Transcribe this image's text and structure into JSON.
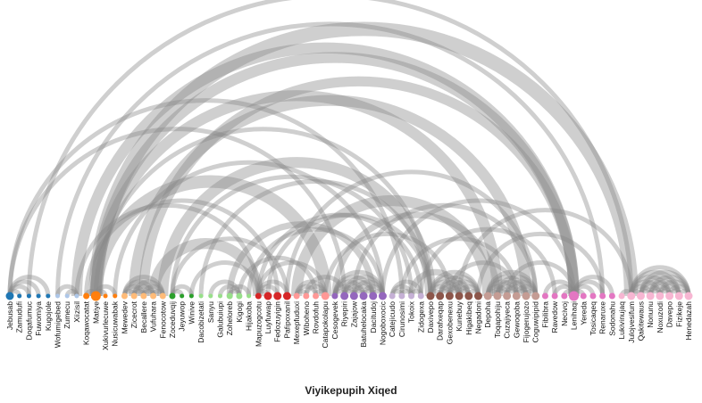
{
  "chart_data": {
    "type": "arc",
    "title": "Viyikepupih Xiqed",
    "nodes": [
      {
        "name": "Jebusab",
        "group": 0,
        "size": 3
      },
      {
        "name": "Zamudufi",
        "group": 0,
        "size": 1
      },
      {
        "name": "Doqafumuc",
        "group": 0,
        "size": 1
      },
      {
        "name": "Fuwomiya",
        "group": 0,
        "size": 1
      },
      {
        "name": "Kugojole",
        "group": 0,
        "size": 1
      },
      {
        "name": "Wofumigebed",
        "group": 1,
        "size": 1
      },
      {
        "name": "Zumecu",
        "group": 1,
        "size": 1
      },
      {
        "name": "Xiizisil",
        "group": 1,
        "size": 1
      },
      {
        "name": "Koqawocatat",
        "group": 2,
        "size": 2
      },
      {
        "name": "Matiye",
        "group": 2,
        "size": 4
      },
      {
        "name": "Xukivurlecuwe",
        "group": 2,
        "size": 1
      },
      {
        "name": "Nusicuwabak",
        "group": 2,
        "size": 1
      },
      {
        "name": "Mewedev",
        "group": 3,
        "size": 2
      },
      {
        "name": "Zicecrot",
        "group": 3,
        "size": 2
      },
      {
        "name": "Becallere",
        "group": 3,
        "size": 2
      },
      {
        "name": "Vufuhara",
        "group": 3,
        "size": 2
      },
      {
        "name": "Fenocotow",
        "group": 3,
        "size": 2
      },
      {
        "name": "Zoceduvqij",
        "group": 4,
        "size": 2
      },
      {
        "name": "Jeyuwop",
        "group": 4,
        "size": 1
      },
      {
        "name": "Winive",
        "group": 4,
        "size": 1
      },
      {
        "name": "Dacobizetati",
        "group": 5,
        "size": 1
      },
      {
        "name": "Sanyu",
        "group": 5,
        "size": 1
      },
      {
        "name": "Galubuiupi",
        "group": 5,
        "size": 1
      },
      {
        "name": "Zoheloreb",
        "group": 5,
        "size": 2
      },
      {
        "name": "Kigogi",
        "group": 5,
        "size": 2
      },
      {
        "name": "Hijakoba",
        "group": 5,
        "size": 1
      },
      {
        "name": "Mapuzogcotu",
        "group": 6,
        "size": 2
      },
      {
        "name": "Luyfuwap",
        "group": 6,
        "size": 3
      },
      {
        "name": "Fedozuyigin",
        "group": 6,
        "size": 3
      },
      {
        "name": "Pafipoxanil",
        "group": 6,
        "size": 3
      },
      {
        "name": "Mexepfuduxi",
        "group": 7,
        "size": 2
      },
      {
        "name": "Wiboheno",
        "group": 7,
        "size": 2
      },
      {
        "name": "Rovdofuh",
        "group": 7,
        "size": 2
      },
      {
        "name": "Catapokolapu",
        "group": 7,
        "size": 3
      },
      {
        "name": "Cesogevek",
        "group": 8,
        "size": 2
      },
      {
        "name": "Riyepiri",
        "group": 8,
        "size": 3
      },
      {
        "name": "Zajajow",
        "group": 8,
        "size": 3
      },
      {
        "name": "Batuhelocaka",
        "group": 8,
        "size": 3
      },
      {
        "name": "Dacitudoj",
        "group": 8,
        "size": 3
      },
      {
        "name": "Nogoboxocic",
        "group": 8,
        "size": 3
      },
      {
        "name": "Catejicudo",
        "group": 9,
        "size": 2
      },
      {
        "name": "Cirunosimi",
        "group": 9,
        "size": 2
      },
      {
        "name": "Tokoix",
        "group": 9,
        "size": 2
      },
      {
        "name": "Zidogexa",
        "group": 9,
        "size": 2
      },
      {
        "name": "Daxivepo",
        "group": 10,
        "size": 3
      },
      {
        "name": "Darafxeqap",
        "group": 10,
        "size": 3
      },
      {
        "name": "Gexobenexu",
        "group": 10,
        "size": 3
      },
      {
        "name": "Kunebuy",
        "group": 10,
        "size": 3
      },
      {
        "name": "Higakibeq",
        "group": 10,
        "size": 3
      },
      {
        "name": "Negadoni",
        "group": 10,
        "size": 3
      },
      {
        "name": "Depoha",
        "group": 11,
        "size": 3
      },
      {
        "name": "Toqapohiju",
        "group": 11,
        "size": 3
      },
      {
        "name": "Cuzajiyeca",
        "group": 11,
        "size": 3
      },
      {
        "name": "Gewoqoba",
        "group": 11,
        "size": 3
      },
      {
        "name": "Fijogerujozo",
        "group": 11,
        "size": 3
      },
      {
        "name": "Coguwipipid",
        "group": 11,
        "size": 3
      },
      {
        "name": "Fibilibra",
        "group": 12,
        "size": 2
      },
      {
        "name": "Ravedow",
        "group": 12,
        "size": 2
      },
      {
        "name": "Necivoj",
        "group": 12,
        "size": 2
      },
      {
        "name": "Lenihaqi",
        "group": 12,
        "size": 4
      },
      {
        "name": "Yereda",
        "group": 12,
        "size": 2
      },
      {
        "name": "Tosicaqeq",
        "group": 12,
        "size": 2
      },
      {
        "name": "Renaruxe",
        "group": 12,
        "size": 2
      },
      {
        "name": "Sodonahu",
        "group": 12,
        "size": 2
      },
      {
        "name": "Lukivinujaq",
        "group": 13,
        "size": 2
      },
      {
        "name": "Julojvesifum",
        "group": 13,
        "size": 3
      },
      {
        "name": "Qakitewaus",
        "group": 13,
        "size": 3
      },
      {
        "name": "Nonunu",
        "group": 13,
        "size": 3
      },
      {
        "name": "Noxuzodi",
        "group": 13,
        "size": 3
      },
      {
        "name": "Davepo",
        "group": 13,
        "size": 3
      },
      {
        "name": "Fizikeje",
        "group": 13,
        "size": 3
      },
      {
        "name": "Henedazah",
        "group": 13,
        "size": 3
      }
    ],
    "group_colors": [
      "#1f77b4",
      "#aec7e8",
      "#ff7f0e",
      "#ffbb78",
      "#2ca02c",
      "#98df8a",
      "#d62728",
      "#ff9896",
      "#9467bd",
      "#c5b0d5",
      "#8c564b",
      "#c49c94",
      "#e377c2",
      "#f7b6d2"
    ],
    "links": [
      {
        "source": 0,
        "target": 1,
        "value": 1
      },
      {
        "source": 0,
        "target": 2,
        "value": 1
      },
      {
        "source": 0,
        "target": 3,
        "value": 1
      },
      {
        "source": 0,
        "target": 4,
        "value": 1
      },
      {
        "source": 0,
        "target": 35,
        "value": 1
      },
      {
        "source": 0,
        "target": 41,
        "value": 1
      },
      {
        "source": 5,
        "target": 7,
        "value": 1
      },
      {
        "source": 6,
        "target": 7,
        "value": 1
      },
      {
        "source": 5,
        "target": 62,
        "value": 1
      },
      {
        "source": 7,
        "target": 59,
        "value": 6
      },
      {
        "source": 7,
        "target": 26,
        "value": 1
      },
      {
        "source": 8,
        "target": 9,
        "value": 1
      },
      {
        "source": 9,
        "target": 10,
        "value": 1
      },
      {
        "source": 9,
        "target": 11,
        "value": 1
      },
      {
        "source": 9,
        "target": 65,
        "value": 10
      },
      {
        "source": 9,
        "target": 59,
        "value": 6
      },
      {
        "source": 9,
        "target": 51,
        "value": 6
      },
      {
        "source": 9,
        "target": 44,
        "value": 1
      },
      {
        "source": 9,
        "target": 33,
        "value": 8
      },
      {
        "source": 8,
        "target": 28,
        "value": 1
      },
      {
        "source": 12,
        "target": 13,
        "value": 1
      },
      {
        "source": 12,
        "target": 14,
        "value": 1
      },
      {
        "source": 12,
        "target": 15,
        "value": 1
      },
      {
        "source": 12,
        "target": 16,
        "value": 1
      },
      {
        "source": 13,
        "target": 14,
        "value": 1
      },
      {
        "source": 13,
        "target": 15,
        "value": 1
      },
      {
        "source": 13,
        "target": 16,
        "value": 1
      },
      {
        "source": 14,
        "target": 15,
        "value": 1
      },
      {
        "source": 14,
        "target": 16,
        "value": 1
      },
      {
        "source": 15,
        "target": 16,
        "value": 1
      },
      {
        "source": 13,
        "target": 54,
        "value": 6
      },
      {
        "source": 14,
        "target": 59,
        "value": 5
      },
      {
        "source": 16,
        "target": 44,
        "value": 6
      },
      {
        "source": 15,
        "target": 26,
        "value": 6
      },
      {
        "source": 17,
        "target": 18,
        "value": 1
      },
      {
        "source": 17,
        "target": 19,
        "value": 1
      },
      {
        "source": 17,
        "target": 29,
        "value": 1
      },
      {
        "source": 17,
        "target": 42,
        "value": 1
      },
      {
        "source": 19,
        "target": 26,
        "value": 1
      },
      {
        "source": 21,
        "target": 24,
        "value": 1
      },
      {
        "source": 22,
        "target": 24,
        "value": 1
      },
      {
        "source": 23,
        "target": 24,
        "value": 1
      },
      {
        "source": 23,
        "target": 25,
        "value": 1
      },
      {
        "source": 24,
        "target": 32,
        "value": 1
      },
      {
        "source": 23,
        "target": 38,
        "value": 2
      },
      {
        "source": 26,
        "target": 27,
        "value": 1
      },
      {
        "source": 26,
        "target": 28,
        "value": 1
      },
      {
        "source": 26,
        "target": 29,
        "value": 1
      },
      {
        "source": 26,
        "target": 43,
        "value": 1
      },
      {
        "source": 27,
        "target": 44,
        "value": 1
      },
      {
        "source": 26,
        "target": 33,
        "value": 1
      },
      {
        "source": 30,
        "target": 31,
        "value": 1
      },
      {
        "source": 30,
        "target": 32,
        "value": 1
      },
      {
        "source": 30,
        "target": 33,
        "value": 1
      },
      {
        "source": 31,
        "target": 33,
        "value": 1
      },
      {
        "source": 32,
        "target": 33,
        "value": 1
      },
      {
        "source": 30,
        "target": 50,
        "value": 6
      },
      {
        "source": 31,
        "target": 35,
        "value": 1
      },
      {
        "source": 34,
        "target": 35,
        "value": 1
      },
      {
        "source": 34,
        "target": 36,
        "value": 1
      },
      {
        "source": 34,
        "target": 37,
        "value": 1
      },
      {
        "source": 34,
        "target": 38,
        "value": 1
      },
      {
        "source": 34,
        "target": 39,
        "value": 1
      },
      {
        "source": 35,
        "target": 36,
        "value": 1
      },
      {
        "source": 35,
        "target": 37,
        "value": 1
      },
      {
        "source": 35,
        "target": 38,
        "value": 1
      },
      {
        "source": 35,
        "target": 39,
        "value": 1
      },
      {
        "source": 36,
        "target": 37,
        "value": 1
      },
      {
        "source": 36,
        "target": 38,
        "value": 1
      },
      {
        "source": 36,
        "target": 39,
        "value": 1
      },
      {
        "source": 37,
        "target": 38,
        "value": 1
      },
      {
        "source": 37,
        "target": 39,
        "value": 1
      },
      {
        "source": 38,
        "target": 39,
        "value": 1
      },
      {
        "source": 34,
        "target": 51,
        "value": 2
      },
      {
        "source": 36,
        "target": 55,
        "value": 1
      },
      {
        "source": 40,
        "target": 41,
        "value": 1
      },
      {
        "source": 40,
        "target": 42,
        "value": 1
      },
      {
        "source": 40,
        "target": 43,
        "value": 1
      },
      {
        "source": 41,
        "target": 42,
        "value": 1
      },
      {
        "source": 42,
        "target": 43,
        "value": 1
      },
      {
        "source": 42,
        "target": 47,
        "value": 2
      },
      {
        "source": 44,
        "target": 45,
        "value": 1
      },
      {
        "source": 44,
        "target": 46,
        "value": 1
      },
      {
        "source": 44,
        "target": 47,
        "value": 1
      },
      {
        "source": 44,
        "target": 48,
        "value": 1
      },
      {
        "source": 44,
        "target": 49,
        "value": 1
      },
      {
        "source": 45,
        "target": 46,
        "value": 1
      },
      {
        "source": 45,
        "target": 47,
        "value": 1
      },
      {
        "source": 45,
        "target": 48,
        "value": 1
      },
      {
        "source": 45,
        "target": 49,
        "value": 1
      },
      {
        "source": 46,
        "target": 47,
        "value": 1
      },
      {
        "source": 46,
        "target": 48,
        "value": 1
      },
      {
        "source": 46,
        "target": 49,
        "value": 1
      },
      {
        "source": 47,
        "target": 48,
        "value": 1
      },
      {
        "source": 47,
        "target": 49,
        "value": 1
      },
      {
        "source": 48,
        "target": 49,
        "value": 1
      },
      {
        "source": 46,
        "target": 53,
        "value": 1
      },
      {
        "source": 50,
        "target": 51,
        "value": 1
      },
      {
        "source": 50,
        "target": 52,
        "value": 1
      },
      {
        "source": 50,
        "target": 53,
        "value": 1
      },
      {
        "source": 50,
        "target": 54,
        "value": 1
      },
      {
        "source": 50,
        "target": 55,
        "value": 1
      },
      {
        "source": 51,
        "target": 52,
        "value": 1
      },
      {
        "source": 51,
        "target": 53,
        "value": 1
      },
      {
        "source": 51,
        "target": 54,
        "value": 1
      },
      {
        "source": 51,
        "target": 55,
        "value": 1
      },
      {
        "source": 52,
        "target": 53,
        "value": 1
      },
      {
        "source": 52,
        "target": 54,
        "value": 1
      },
      {
        "source": 52,
        "target": 55,
        "value": 1
      },
      {
        "source": 53,
        "target": 54,
        "value": 1
      },
      {
        "source": 53,
        "target": 55,
        "value": 1
      },
      {
        "source": 54,
        "target": 55,
        "value": 1
      },
      {
        "source": 56,
        "target": 59,
        "value": 1
      },
      {
        "source": 57,
        "target": 59,
        "value": 1
      },
      {
        "source": 58,
        "target": 59,
        "value": 1
      },
      {
        "source": 59,
        "target": 60,
        "value": 1
      },
      {
        "source": 59,
        "target": 61,
        "value": 1
      },
      {
        "source": 59,
        "target": 62,
        "value": 1
      },
      {
        "source": 59,
        "target": 63,
        "value": 1
      },
      {
        "source": 52,
        "target": 59,
        "value": 1
      },
      {
        "source": 64,
        "target": 65,
        "value": 1
      },
      {
        "source": 65,
        "target": 66,
        "value": 1
      },
      {
        "source": 65,
        "target": 67,
        "value": 1
      },
      {
        "source": 65,
        "target": 68,
        "value": 1
      },
      {
        "source": 65,
        "target": 69,
        "value": 1
      },
      {
        "source": 65,
        "target": 70,
        "value": 1
      },
      {
        "source": 65,
        "target": 71,
        "value": 1
      },
      {
        "source": 66,
        "target": 67,
        "value": 1
      },
      {
        "source": 66,
        "target": 68,
        "value": 1
      },
      {
        "source": 66,
        "target": 69,
        "value": 1
      },
      {
        "source": 66,
        "target": 70,
        "value": 1
      },
      {
        "source": 66,
        "target": 71,
        "value": 1
      },
      {
        "source": 67,
        "target": 68,
        "value": 1
      },
      {
        "source": 67,
        "target": 69,
        "value": 1
      },
      {
        "source": 67,
        "target": 70,
        "value": 1
      },
      {
        "source": 67,
        "target": 71,
        "value": 1
      },
      {
        "source": 68,
        "target": 69,
        "value": 1
      },
      {
        "source": 68,
        "target": 70,
        "value": 1
      },
      {
        "source": 68,
        "target": 71,
        "value": 1
      },
      {
        "source": 69,
        "target": 70,
        "value": 1
      },
      {
        "source": 69,
        "target": 71,
        "value": 1
      },
      {
        "source": 70,
        "target": 71,
        "value": 1
      },
      {
        "source": 2,
        "target": 65,
        "value": 1
      },
      {
        "source": 20,
        "target": 44,
        "value": 1
      },
      {
        "source": 29,
        "target": 55,
        "value": 1
      },
      {
        "source": 39,
        "target": 59,
        "value": 1
      },
      {
        "source": 43,
        "target": 57,
        "value": 1
      },
      {
        "source": 25,
        "target": 39,
        "value": 1
      },
      {
        "source": 11,
        "target": 39,
        "value": 1
      },
      {
        "source": 47,
        "target": 65,
        "value": 1
      },
      {
        "source": 49,
        "target": 62,
        "value": 1
      },
      {
        "source": 41,
        "target": 53,
        "value": 1
      },
      {
        "source": 33,
        "target": 46,
        "value": 1
      }
    ]
  }
}
